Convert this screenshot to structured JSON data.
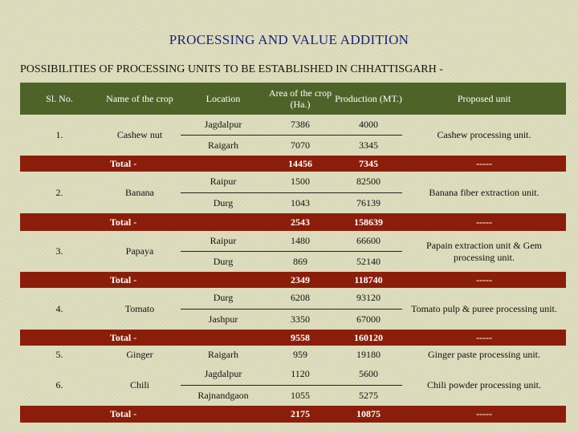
{
  "title": "PROCESSING AND VALUE ADDITION",
  "subtitle": "POSSIBILITIES OF PROCESSING UNITS TO BE ESTABLISHED IN CHHATTISGARH -",
  "colors": {
    "header_bg": "#4e6328",
    "total_bg": "#8b1e0a",
    "page_bg": "#dcdcbc",
    "title": "#1a1f7a"
  },
  "headers": [
    "Sl. No.",
    "Name of the crop",
    "Location",
    "Area of the crop (Ha.)",
    "Production (MT.)",
    "Proposed unit"
  ],
  "groups": [
    {
      "sl": "1.",
      "crop": "Cashew nut",
      "unit": "Cashew processing unit.",
      "rows": [
        {
          "location": "Jagdalpur",
          "area": "7386",
          "production": "4000"
        },
        {
          "location": "Raigarh",
          "area": "7070",
          "production": "3345"
        }
      ],
      "total": {
        "label": "Total -",
        "area": "14456",
        "production": "7345",
        "unit": "-----"
      }
    },
    {
      "sl": "2.",
      "crop": "Banana",
      "unit": "Banana fiber extraction unit.",
      "rows": [
        {
          "location": "Raipur",
          "area": "1500",
          "production": "82500"
        },
        {
          "location": "Durg",
          "area": "1043",
          "production": "76139"
        }
      ],
      "total": {
        "label": "Total -",
        "area": "2543",
        "production": "158639",
        "unit": "-----"
      }
    },
    {
      "sl": "3.",
      "crop": "Papaya",
      "unit": "Papain extraction unit & Gem processing unit.",
      "rows": [
        {
          "location": "Raipur",
          "area": "1480",
          "production": "66600"
        },
        {
          "location": "Durg",
          "area": "869",
          "production": "52140"
        }
      ],
      "total": {
        "label": "Total -",
        "area": "2349",
        "production": "118740",
        "unit": "-----"
      }
    },
    {
      "sl": "4.",
      "crop": "Tomato",
      "unit": "Tomato pulp & puree processing unit.",
      "rows": [
        {
          "location": "Durg",
          "area": "6208",
          "production": "93120"
        },
        {
          "location": "Jashpur",
          "area": "3350",
          "production": "67000"
        }
      ],
      "total": {
        "label": "Total -",
        "area": "9558",
        "production": "160120",
        "unit": "-----"
      }
    },
    {
      "sl": "5.",
      "crop": "Ginger",
      "unit": "Ginger paste processing unit.",
      "rows": [
        {
          "location": "Raigarh",
          "area": "959",
          "production": "19180"
        }
      ]
    },
    {
      "sl": "6.",
      "crop": "Chili",
      "unit": "Chili powder processing unit.",
      "rows": [
        {
          "location": "Jagdalpur",
          "area": "1120",
          "production": "5600"
        },
        {
          "location": "Rajnandgaon",
          "area": "1055",
          "production": "5275"
        }
      ],
      "total": {
        "label": "Total -",
        "area": "2175",
        "production": "10875",
        "unit": "-----"
      }
    }
  ]
}
